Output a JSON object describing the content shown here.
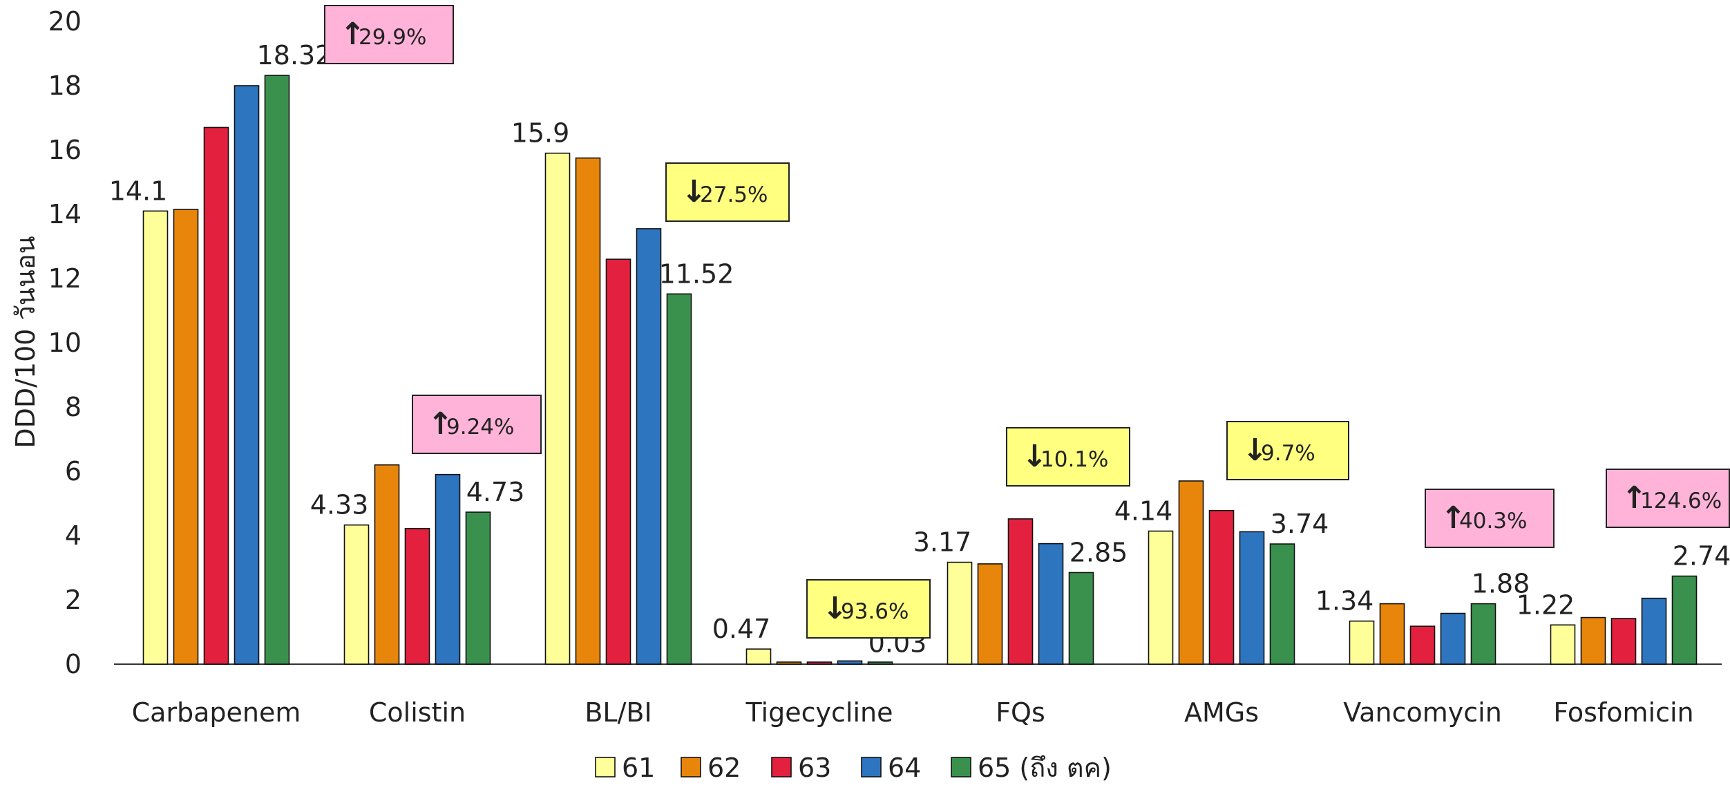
{
  "chart_data": {
    "type": "bar",
    "title": "",
    "xlabel": "",
    "ylabel": "DDD/100 วันนอน",
    "ylim": [
      0,
      20
    ],
    "yticks": [
      0,
      2,
      4,
      6,
      8,
      10,
      12,
      14,
      16,
      18,
      20
    ],
    "grid": false,
    "legend_position": "bottom",
    "categories": [
      "Carbapenem",
      "Colistin",
      "BL/BI",
      "Tigecycline",
      "FQs",
      "AMGs",
      "Vancomycin",
      "Fosfomicin"
    ],
    "series": [
      {
        "name": "61",
        "color": "#FFFF99",
        "values": [
          14.1,
          4.33,
          15.9,
          0.47,
          3.17,
          4.14,
          1.34,
          1.22
        ]
      },
      {
        "name": "62",
        "color": "#E8860C",
        "values": [
          14.15,
          6.2,
          15.75,
          0.05,
          3.12,
          5.7,
          1.88,
          1.45
        ]
      },
      {
        "name": "63",
        "color": "#E3213F",
        "values": [
          16.7,
          4.22,
          12.6,
          0.05,
          4.52,
          4.78,
          1.18,
          1.42
        ]
      },
      {
        "name": "64",
        "color": "#2E75C0",
        "values": [
          18.0,
          5.9,
          13.55,
          0.1,
          3.75,
          4.12,
          1.58,
          2.05
        ]
      },
      {
        "name": "65 (ถึง ตค)",
        "color": "#3A914E",
        "values": [
          18.32,
          4.73,
          11.52,
          0.03,
          2.85,
          3.74,
          1.88,
          2.74
        ]
      }
    ],
    "data_labels": [
      {
        "category": 0,
        "series": 0,
        "text": "14.1"
      },
      {
        "category": 0,
        "series": 4,
        "text": "18.32"
      },
      {
        "category": 1,
        "series": 0,
        "text": "4.33"
      },
      {
        "category": 1,
        "series": 4,
        "text": "4.73"
      },
      {
        "category": 2,
        "series": 0,
        "text": "15.9"
      },
      {
        "category": 2,
        "series": 4,
        "text": "11.52"
      },
      {
        "category": 3,
        "series": 0,
        "text": "0.47"
      },
      {
        "category": 3,
        "series": 4,
        "text": "0.03"
      },
      {
        "category": 4,
        "series": 0,
        "text": "3.17"
      },
      {
        "category": 4,
        "series": 4,
        "text": "2.85"
      },
      {
        "category": 5,
        "series": 0,
        "text": "4.14"
      },
      {
        "category": 5,
        "series": 4,
        "text": "3.74"
      },
      {
        "category": 6,
        "series": 0,
        "text": "1.34"
      },
      {
        "category": 6,
        "series": 4,
        "text": "1.88"
      },
      {
        "category": 7,
        "series": 0,
        "text": "1.22"
      },
      {
        "category": 7,
        "series": 4,
        "text": "2.74"
      }
    ],
    "annotations": [
      {
        "category": 0,
        "direction": "up",
        "arrow": "↑",
        "text": "29.9%",
        "color": "#FFB3D9"
      },
      {
        "category": 1,
        "direction": "up",
        "arrow": "↑",
        "text": "9.24%",
        "color": "#FFB3D9"
      },
      {
        "category": 2,
        "direction": "down",
        "arrow": "↓",
        "text": "27.5%",
        "color": "#FFFF80"
      },
      {
        "category": 3,
        "direction": "down",
        "arrow": "↓",
        "text": "93.6%",
        "color": "#FFFF80"
      },
      {
        "category": 4,
        "direction": "down",
        "arrow": "↓",
        "text": "10.1%",
        "color": "#FFFF80"
      },
      {
        "category": 5,
        "direction": "down",
        "arrow": "↓",
        "text": "9.7%",
        "color": "#FFFF80"
      },
      {
        "category": 6,
        "direction": "up",
        "arrow": "↑",
        "text": "40.3%",
        "color": "#FFB3D9"
      },
      {
        "category": 7,
        "direction": "up",
        "arrow": "↑",
        "text": "124.6%",
        "color": "#FFB3D9"
      }
    ]
  }
}
